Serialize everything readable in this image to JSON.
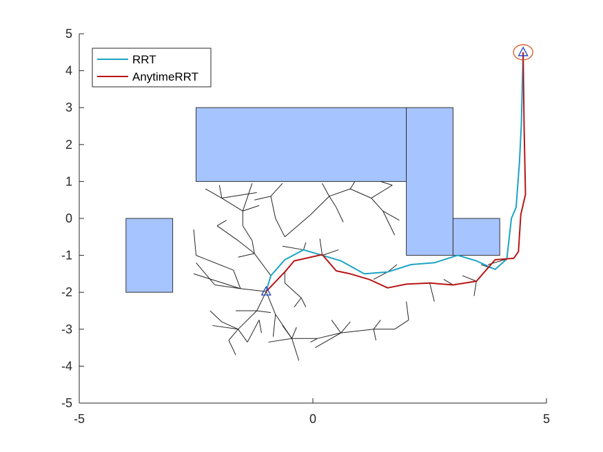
{
  "chart_data": {
    "type": "line",
    "title": "",
    "xlabel": "",
    "ylabel": "",
    "xlim": [
      -5,
      5
    ],
    "ylim": [
      -5,
      5
    ],
    "xticks": [
      -5,
      0,
      5
    ],
    "yticks": [
      -5,
      -4,
      -3,
      -2,
      -1,
      0,
      1,
      2,
      3,
      4,
      5
    ],
    "grid": false,
    "legend_position": "top-left",
    "colors": {
      "obstacle_fill": "#a6c4ff",
      "obstacle_edge": "#333333",
      "tree": "#222222",
      "marker": "#1f3fbf",
      "goal_circle": "#d9541e"
    },
    "series": [
      {
        "name": "RRT",
        "color": "#1aa3c4",
        "points": [
          [
            -1.0,
            -1.98
          ],
          [
            -0.9,
            -1.55
          ],
          [
            -0.6,
            -1.12
          ],
          [
            -0.2,
            -0.85
          ],
          [
            0.2,
            -1.0
          ],
          [
            0.6,
            -1.15
          ],
          [
            1.1,
            -1.5
          ],
          [
            1.6,
            -1.45
          ],
          [
            2.1,
            -1.25
          ],
          [
            2.6,
            -1.2
          ],
          [
            3.1,
            -1.0
          ],
          [
            3.5,
            -1.15
          ],
          [
            3.9,
            -1.38
          ],
          [
            4.15,
            -1.1
          ],
          [
            4.25,
            0.0
          ],
          [
            4.35,
            0.3
          ],
          [
            4.42,
            1.5
          ],
          [
            4.46,
            2.5
          ],
          [
            4.5,
            4.5
          ]
        ]
      },
      {
        "name": "AnytimeRRT",
        "color": "#b81414",
        "points": [
          [
            -1.0,
            -1.98
          ],
          [
            -0.6,
            -1.45
          ],
          [
            -0.4,
            -1.15
          ],
          [
            0.2,
            -0.98
          ],
          [
            0.5,
            -1.42
          ],
          [
            0.8,
            -1.5
          ],
          [
            1.2,
            -1.65
          ],
          [
            1.6,
            -1.88
          ],
          [
            2.0,
            -1.78
          ],
          [
            2.5,
            -1.75
          ],
          [
            3.0,
            -1.8
          ],
          [
            3.5,
            -1.7
          ],
          [
            3.9,
            -1.12
          ],
          [
            4.3,
            -1.08
          ],
          [
            4.4,
            -0.9
          ],
          [
            4.45,
            0.1
          ],
          [
            4.55,
            0.65
          ],
          [
            4.52,
            2.5
          ],
          [
            4.5,
            4.5
          ]
        ]
      }
    ],
    "obstacles": [
      {
        "x": -4.0,
        "y": -2.0,
        "w": 1.0,
        "h": 2.0
      },
      {
        "x": -2.5,
        "y": 1.0,
        "w": 4.5,
        "h": 2.0
      },
      {
        "x": 2.0,
        "y": -1.0,
        "w": 1.0,
        "h": 4.0
      },
      {
        "x": 3.0,
        "y": -1.0,
        "w": 1.0,
        "h": 1.0
      }
    ],
    "start": [
      -1.0,
      -1.98
    ],
    "goal": [
      4.5,
      4.5
    ],
    "tree_edges": [
      [
        [
          -1.0,
          -1.98
        ],
        [
          -0.9,
          -1.55
        ]
      ],
      [
        [
          -1.0,
          -1.98
        ],
        [
          -1.55,
          -1.9
        ]
      ],
      [
        [
          -1.55,
          -1.9
        ],
        [
          -2.1,
          -1.8
        ]
      ],
      [
        [
          -1.55,
          -1.9
        ],
        [
          -2.55,
          -1.5
        ]
      ],
      [
        [
          -1.55,
          -1.9
        ],
        [
          -1.7,
          -1.4
        ]
      ],
      [
        [
          -2.1,
          -1.8
        ],
        [
          -2.5,
          -1.2
        ]
      ],
      [
        [
          -1.7,
          -1.4
        ],
        [
          -2.3,
          -1.1
        ]
      ],
      [
        [
          -2.3,
          -1.1
        ],
        [
          -2.5,
          -1.0
        ]
      ],
      [
        [
          -2.5,
          -1.0
        ],
        [
          -2.55,
          -0.3
        ]
      ],
      [
        [
          -1.0,
          -1.98
        ],
        [
          -1.2,
          -2.5
        ]
      ],
      [
        [
          -1.2,
          -2.5
        ],
        [
          -1.65,
          -2.5
        ]
      ],
      [
        [
          -1.2,
          -2.5
        ],
        [
          -0.9,
          -2.55
        ]
      ],
      [
        [
          -1.2,
          -2.5
        ],
        [
          -1.6,
          -3.0
        ]
      ],
      [
        [
          -1.6,
          -3.0
        ],
        [
          -1.95,
          -2.8
        ]
      ],
      [
        [
          -1.95,
          -2.8
        ],
        [
          -2.2,
          -2.5
        ]
      ],
      [
        [
          -1.6,
          -3.0
        ],
        [
          -2.15,
          -2.9
        ]
      ],
      [
        [
          -1.6,
          -3.0
        ],
        [
          -1.8,
          -3.3
        ]
      ],
      [
        [
          -1.8,
          -3.3
        ],
        [
          -1.65,
          -3.7
        ]
      ],
      [
        [
          -1.6,
          -3.0
        ],
        [
          -1.4,
          -3.35
        ]
      ],
      [
        [
          -1.4,
          -3.35
        ],
        [
          -1.15,
          -2.75
        ]
      ],
      [
        [
          -1.15,
          -2.75
        ],
        [
          -1.1,
          -3.1
        ]
      ],
      [
        [
          -1.0,
          -1.98
        ],
        [
          -0.8,
          -2.6
        ]
      ],
      [
        [
          -0.8,
          -2.6
        ],
        [
          -0.85,
          -3.2
        ]
      ],
      [
        [
          -0.8,
          -2.6
        ],
        [
          -0.45,
          -3.25
        ]
      ],
      [
        [
          -0.45,
          -3.25
        ],
        [
          -0.65,
          -2.9
        ]
      ],
      [
        [
          -0.45,
          -3.25
        ],
        [
          -0.35,
          -2.95
        ]
      ],
      [
        [
          -0.45,
          -3.25
        ],
        [
          -0.95,
          -3.35
        ]
      ],
      [
        [
          -0.45,
          -3.25
        ],
        [
          -0.3,
          -3.85
        ]
      ],
      [
        [
          -0.45,
          -3.25
        ],
        [
          0.1,
          -3.25
        ]
      ],
      [
        [
          0.1,
          -3.25
        ],
        [
          0.6,
          -3.1
        ]
      ],
      [
        [
          0.6,
          -3.1
        ],
        [
          0.8,
          -2.8
        ]
      ],
      [
        [
          0.6,
          -3.1
        ],
        [
          0.4,
          -2.75
        ]
      ],
      [
        [
          0.6,
          -3.1
        ],
        [
          0.05,
          -3.5
        ]
      ],
      [
        [
          0.1,
          -3.25
        ],
        [
          -0.05,
          -3.35
        ]
      ],
      [
        [
          0.6,
          -3.1
        ],
        [
          1.3,
          -3.0
        ]
      ],
      [
        [
          1.3,
          -3.0
        ],
        [
          1.35,
          -3.3
        ]
      ],
      [
        [
          1.3,
          -3.0
        ],
        [
          1.75,
          -3.0
        ]
      ],
      [
        [
          1.75,
          -3.0
        ],
        [
          2.05,
          -2.75
        ]
      ],
      [
        [
          2.05,
          -2.75
        ],
        [
          2.0,
          -2.25
        ]
      ],
      [
        [
          1.3,
          -3.0
        ],
        [
          1.45,
          -2.75
        ]
      ],
      [
        [
          -0.6,
          -1.45
        ],
        [
          -0.6,
          -1.75
        ]
      ],
      [
        [
          -0.6,
          -1.75
        ],
        [
          -0.25,
          -2.15
        ]
      ],
      [
        [
          -0.25,
          -2.15
        ],
        [
          -0.4,
          -2.4
        ]
      ],
      [
        [
          -0.25,
          -2.15
        ],
        [
          -0.15,
          -2.4
        ]
      ],
      [
        [
          -0.2,
          -0.85
        ],
        [
          -0.15,
          -0.65
        ]
      ],
      [
        [
          -0.2,
          -0.85
        ],
        [
          -0.65,
          -0.75
        ]
      ],
      [
        [
          0.2,
          -1.0
        ],
        [
          0.15,
          -0.55
        ]
      ],
      [
        [
          0.2,
          -1.0
        ],
        [
          0.55,
          -0.85
        ]
      ],
      [
        [
          -0.9,
          -1.55
        ],
        [
          -1.25,
          -0.95
        ]
      ],
      [
        [
          -1.25,
          -0.95
        ],
        [
          -1.3,
          -0.6
        ]
      ],
      [
        [
          -1.25,
          -0.95
        ],
        [
          -1.6,
          -0.6
        ]
      ],
      [
        [
          -1.6,
          -0.6
        ],
        [
          -2.05,
          -0.2
        ]
      ],
      [
        [
          -2.05,
          -0.2
        ],
        [
          -1.85,
          -0.05
        ]
      ],
      [
        [
          -1.25,
          -0.95
        ],
        [
          -1.6,
          -1.05
        ]
      ],
      [
        [
          -1.3,
          -0.6
        ],
        [
          -1.5,
          -0.2
        ]
      ],
      [
        [
          -1.5,
          -0.2
        ],
        [
          -1.5,
          0.2
        ]
      ],
      [
        [
          -1.5,
          0.2
        ],
        [
          -1.95,
          0.55
        ]
      ],
      [
        [
          -1.95,
          0.55
        ],
        [
          -2.0,
          0.9
        ]
      ],
      [
        [
          -1.95,
          0.55
        ],
        [
          -2.3,
          0.8
        ]
      ],
      [
        [
          -1.5,
          0.2
        ],
        [
          -1.15,
          0.35
        ]
      ],
      [
        [
          -1.5,
          0.2
        ],
        [
          -1.3,
          0.95
        ]
      ],
      [
        [
          -1.95,
          0.55
        ],
        [
          -1.2,
          0.7
        ]
      ],
      [
        [
          -0.6,
          -0.5
        ],
        [
          -0.8,
          0.0
        ]
      ],
      [
        [
          -0.8,
          0.0
        ],
        [
          -0.9,
          0.6
        ]
      ],
      [
        [
          -0.9,
          0.6
        ],
        [
          -0.65,
          0.95
        ]
      ],
      [
        [
          -0.9,
          0.6
        ],
        [
          -1.25,
          0.5
        ]
      ],
      [
        [
          -0.6,
          -0.5
        ],
        [
          -0.05,
          0.1
        ]
      ],
      [
        [
          -0.05,
          0.1
        ],
        [
          0.35,
          0.6
        ]
      ],
      [
        [
          0.35,
          0.6
        ],
        [
          0.2,
          0.95
        ]
      ],
      [
        [
          0.35,
          0.6
        ],
        [
          0.5,
          0.3
        ]
      ],
      [
        [
          0.35,
          0.6
        ],
        [
          0.8,
          0.8
        ]
      ],
      [
        [
          0.8,
          0.8
        ],
        [
          0.9,
          1.0
        ]
      ],
      [
        [
          0.8,
          0.8
        ],
        [
          1.25,
          0.55
        ]
      ],
      [
        [
          0.5,
          0.3
        ],
        [
          0.65,
          -0.1
        ]
      ],
      [
        [
          1.25,
          0.55
        ],
        [
          1.5,
          0.2
        ]
      ],
      [
        [
          1.5,
          0.2
        ],
        [
          1.75,
          -0.45
        ]
      ],
      [
        [
          1.5,
          0.2
        ],
        [
          1.85,
          -0.05
        ]
      ],
      [
        [
          1.25,
          0.55
        ],
        [
          1.7,
          0.9
        ]
      ],
      [
        [
          1.7,
          0.9
        ],
        [
          1.45,
          1.0
        ]
      ],
      [
        [
          0.6,
          -1.15
        ],
        [
          0.9,
          -1.35
        ]
      ],
      [
        [
          1.6,
          -1.45
        ],
        [
          1.8,
          -1.25
        ]
      ],
      [
        [
          1.6,
          -1.45
        ],
        [
          1.3,
          -1.65
        ]
      ],
      [
        [
          2.5,
          -1.75
        ],
        [
          2.6,
          -2.25
        ]
      ],
      [
        [
          3.0,
          -1.8
        ],
        [
          2.8,
          -1.65
        ]
      ],
      [
        [
          3.5,
          -1.7
        ],
        [
          3.45,
          -2.1
        ]
      ],
      [
        [
          3.5,
          -1.7
        ],
        [
          3.2,
          -1.55
        ]
      ],
      [
        [
          3.9,
          -1.38
        ],
        [
          3.6,
          -1.25
        ]
      ],
      [
        [
          4.15,
          -1.1
        ],
        [
          3.75,
          -1.25
        ]
      ]
    ]
  }
}
